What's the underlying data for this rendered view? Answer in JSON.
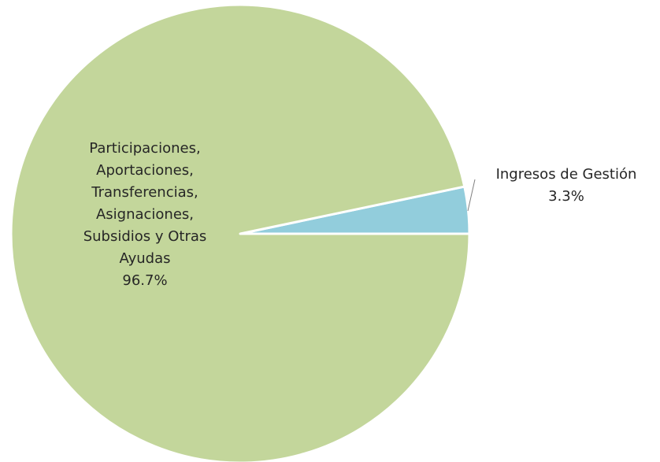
{
  "chart_data": {
    "type": "pie",
    "start_angle_deg": 0,
    "direction": "counterclockwise",
    "slices": [
      {
        "label_lines": [
          "Ingresos de Gestión"
        ],
        "value": 3.3,
        "value_label": "3.3%",
        "color": "#92cddc"
      },
      {
        "label_lines": [
          "Participaciones,",
          "Aportaciones,",
          "Transferencias,",
          "Asignaciones,",
          "Subsidios y Otras",
          "Ayudas"
        ],
        "value": 96.7,
        "value_label": "96.7%",
        "color": "#c3d69b"
      }
    ]
  }
}
